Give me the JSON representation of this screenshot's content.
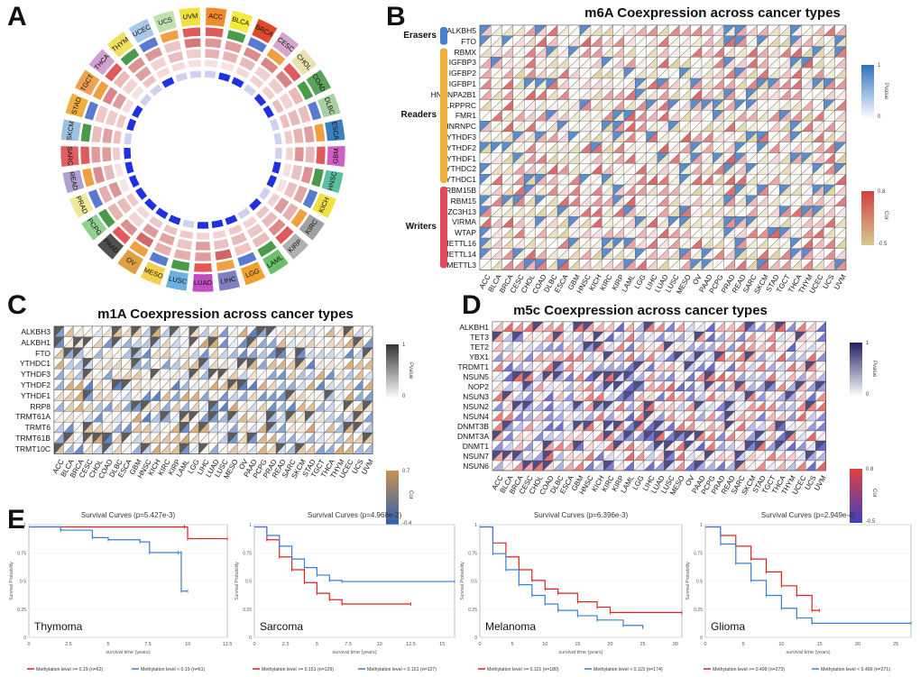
{
  "panels": {
    "A": {
      "label": "A",
      "cancers": [
        "ACC",
        "BLCA",
        "BRCA",
        "CESC",
        "CHOL",
        "COAD",
        "DLBC",
        "ESCA",
        "GBM",
        "HNSC",
        "KICH",
        "KIRC",
        "KIRP",
        "LAML",
        "LGG",
        "LIHC",
        "LUAD",
        "LUSC",
        "MESO",
        "OV",
        "PAAD",
        "PCPG",
        "PRAD",
        "READ",
        "SARC",
        "SKCM",
        "STAD",
        "TGCT",
        "THCA",
        "THYM",
        "UCEC",
        "UCS",
        "UVM"
      ],
      "colors": [
        "#f08a2c",
        "#f5e93a",
        "#e04a2c",
        "#d6a6c9",
        "#e8e2b0",
        "#5aa35a",
        "#a8d0a0",
        "#3a7fc0",
        "#d060c0",
        "#5bbf9f",
        "#f0e040",
        "#a0a0a0",
        "#b0b0b0",
        "#6abf6a",
        "#f0a030",
        "#8080c0",
        "#c050c0",
        "#6ab0e0",
        "#f5d050",
        "#e0a040",
        "#505050",
        "#90d090",
        "#f0e89a",
        "#b0a0d0",
        "#e06060",
        "#a0c0e0",
        "#f0b040",
        "#f0a050",
        "#d0a0d0",
        "#f0e060",
        "#a8c8e8",
        "#c0e0b0",
        "#f0e040"
      ]
    },
    "B": {
      "label": "B",
      "title": "m6A Coexpression across cancer types",
      "rows": [
        "ALKBH5",
        "FTO",
        "RBMX",
        "IGFBP3",
        "IGFBP2",
        "IGFBP1",
        "HNRNPA2B1",
        "LRPPRC",
        "FMR1",
        "HNRNPC",
        "YTHDF3",
        "YTHDF2",
        "YTHDF1",
        "YTHDC2",
        "YTHDC1",
        "RBM15B",
        "RBM15",
        "ZC3H13",
        "VIRMA",
        "WTAP",
        "METTL16",
        "METTL14",
        "METTL3"
      ],
      "groups": [
        {
          "name": "Erasers",
          "color": "#4a7fd0"
        },
        {
          "name": "Readers",
          "color": "#f0b040"
        },
        {
          "name": "Writers",
          "color": "#e04a5a"
        }
      ],
      "pvalue_label": "Pvalue",
      "pvalue_max": "1",
      "pvalue_min": "0",
      "cor_label": "Cor",
      "cor_max": "0.8",
      "cor_min": "-0.5"
    },
    "C": {
      "label": "C",
      "title": "m1A Coexpression across cancer types",
      "rows": [
        "ALKBH3",
        "ALKBH1",
        "FTO",
        "YTHDC1",
        "YTHDF3",
        "YTHDF2",
        "YTHDF1",
        "RRP8",
        "TRMT61A",
        "TRMT6",
        "TRMT61B",
        "TRMT10C"
      ],
      "pvalue_label": "Pvalue",
      "pvalue_max": "1",
      "pvalue_min": "0",
      "cor_label": "Cor",
      "cor_max": "0.7",
      "cor_min": "-0.4"
    },
    "D": {
      "label": "D",
      "title": "m5c Coexpression across cancer types",
      "rows": [
        "ALKBH1",
        "TET3",
        "TET2",
        "YBX1",
        "TRDMT1",
        "NSUN5",
        "NOP2",
        "NSUN3",
        "NSUN2",
        "NSUN4",
        "DNMT3B",
        "DNMT3A",
        "DNMT1",
        "NSUN7",
        "NSUN6"
      ],
      "pvalue_label": "Pvalue",
      "pvalue_max": "1",
      "pvalue_min": "0",
      "cor_label": "Cor",
      "cor_max": "0.8",
      "cor_min": "-0.5"
    },
    "E": {
      "label": "E"
    }
  },
  "heatmap_columns": [
    "ACC",
    "BLCA",
    "BRCA",
    "CESC",
    "CHOL",
    "COAD",
    "DLBC",
    "ESCA",
    "GBM",
    "HNSC",
    "KICH",
    "KIRC",
    "KIRP",
    "LAML",
    "LGG",
    "LIHC",
    "LUAD",
    "LUSC",
    "MESO",
    "OV",
    "PAAD",
    "PCPG",
    "PRAD",
    "READ",
    "SARC",
    "SKCM",
    "STAD",
    "TGCT",
    "THCA",
    "THYM",
    "UCEC",
    "UCS",
    "UVM"
  ],
  "chart_data": [
    {
      "type": "line",
      "title": "Survival Curves (p=5.427e-3)",
      "ylabel": "Survival Probability",
      "xlabel": "survival time (years)",
      "cancer": "Thymoma",
      "xticks": [
        "0",
        "2.5",
        "5",
        "7.5",
        "10",
        "12.5"
      ],
      "xlim": [
        0,
        12.5
      ],
      "ylim": [
        0,
        1
      ],
      "legend": [
        "Methylation level >= 0.19 (n=62)",
        "Methylation level < 0.19 (n=61)"
      ],
      "series": [
        {
          "name": "high",
          "color": "#e02020",
          "x": [
            0,
            9.8,
            10,
            12.5
          ],
          "y": [
            1,
            1,
            0.89,
            0.89
          ]
        },
        {
          "name": "low",
          "color": "#3a7fd0",
          "x": [
            0,
            2,
            4,
            5,
            7,
            7.6,
            9.4,
            9.6,
            9.6,
            10
          ],
          "y": [
            1,
            0.97,
            0.9,
            0.88,
            0.86,
            0.76,
            0.76,
            0.76,
            0.4,
            0.4
          ]
        }
      ]
    },
    {
      "type": "line",
      "title": "Survival Curves (p=4.968e-2)",
      "ylabel": "Survival Probability",
      "xlabel": "survival time (years)",
      "cancer": "Sarcoma",
      "xticks": [
        "0",
        "2.5",
        "5",
        "7.5",
        "10",
        "12.5",
        "15"
      ],
      "xlim": [
        0,
        16
      ],
      "ylim": [
        0,
        1
      ],
      "legend": [
        "Methylation level >= 0.151 (n=129)",
        "Methylation level < 0.151 (n=127)"
      ],
      "series": [
        {
          "name": "high",
          "color": "#e02020",
          "x": [
            0,
            1,
            2,
            3,
            4,
            5,
            6,
            7,
            12.5
          ],
          "y": [
            1,
            0.88,
            0.72,
            0.6,
            0.48,
            0.38,
            0.32,
            0.28,
            0.28
          ]
        },
        {
          "name": "low",
          "color": "#3a7fd0",
          "x": [
            0,
            1,
            2,
            3,
            4,
            5,
            6,
            7,
            16
          ],
          "y": [
            1,
            0.92,
            0.82,
            0.7,
            0.62,
            0.55,
            0.5,
            0.49,
            0.49
          ]
        }
      ]
    },
    {
      "type": "line",
      "title": "Survival Curves (p=6.396e-3)",
      "ylabel": "Survival Probability",
      "xlabel": "survival time (years)",
      "cancer": "Melanoma",
      "xticks": [
        "0",
        "5",
        "10",
        "15",
        "20",
        "25",
        "30"
      ],
      "xlim": [
        0,
        31
      ],
      "ylim": [
        0,
        1
      ],
      "legend": [
        "Methylation level >= 0.115 (n=180)",
        "Methylation level < 0.115 (n=174)"
      ],
      "series": [
        {
          "name": "high",
          "color": "#e02020",
          "x": [
            0,
            2,
            4,
            6,
            8,
            10,
            12,
            15,
            18,
            20,
            31
          ],
          "y": [
            1,
            0.85,
            0.72,
            0.6,
            0.5,
            0.42,
            0.38,
            0.3,
            0.25,
            0.2,
            0.2
          ]
        },
        {
          "name": "low",
          "color": "#3a7fd0",
          "x": [
            0,
            2,
            4,
            6,
            8,
            10,
            12,
            15,
            18,
            22,
            25
          ],
          "y": [
            1,
            0.75,
            0.6,
            0.46,
            0.36,
            0.28,
            0.22,
            0.17,
            0.13,
            0.08,
            0.06
          ]
        }
      ]
    },
    {
      "type": "line",
      "title": "Survival Curves (p=2.949e-4)",
      "ylabel": "Survival Probability",
      "xlabel": "survival time (years)",
      "cancer": "Glioma",
      "xticks": [
        "0",
        "5",
        "10",
        "15",
        "20",
        "25"
      ],
      "xlim": [
        0,
        27
      ],
      "ylim": [
        0,
        1
      ],
      "legend": [
        "Methylation level >= 0.499 (n=273)",
        "Methylation level < 0.499 (n=271)"
      ],
      "series": [
        {
          "name": "high",
          "color": "#e02020",
          "x": [
            0,
            2,
            4,
            6,
            8,
            10,
            12,
            14,
            15
          ],
          "y": [
            1,
            0.92,
            0.82,
            0.7,
            0.58,
            0.45,
            0.36,
            0.22,
            0.22
          ]
        },
        {
          "name": "low",
          "color": "#3a7fd0",
          "x": [
            0,
            2,
            4,
            6,
            8,
            10,
            12,
            14,
            27
          ],
          "y": [
            1,
            0.84,
            0.66,
            0.5,
            0.36,
            0.24,
            0.15,
            0.1,
            0.1
          ]
        }
      ]
    }
  ]
}
